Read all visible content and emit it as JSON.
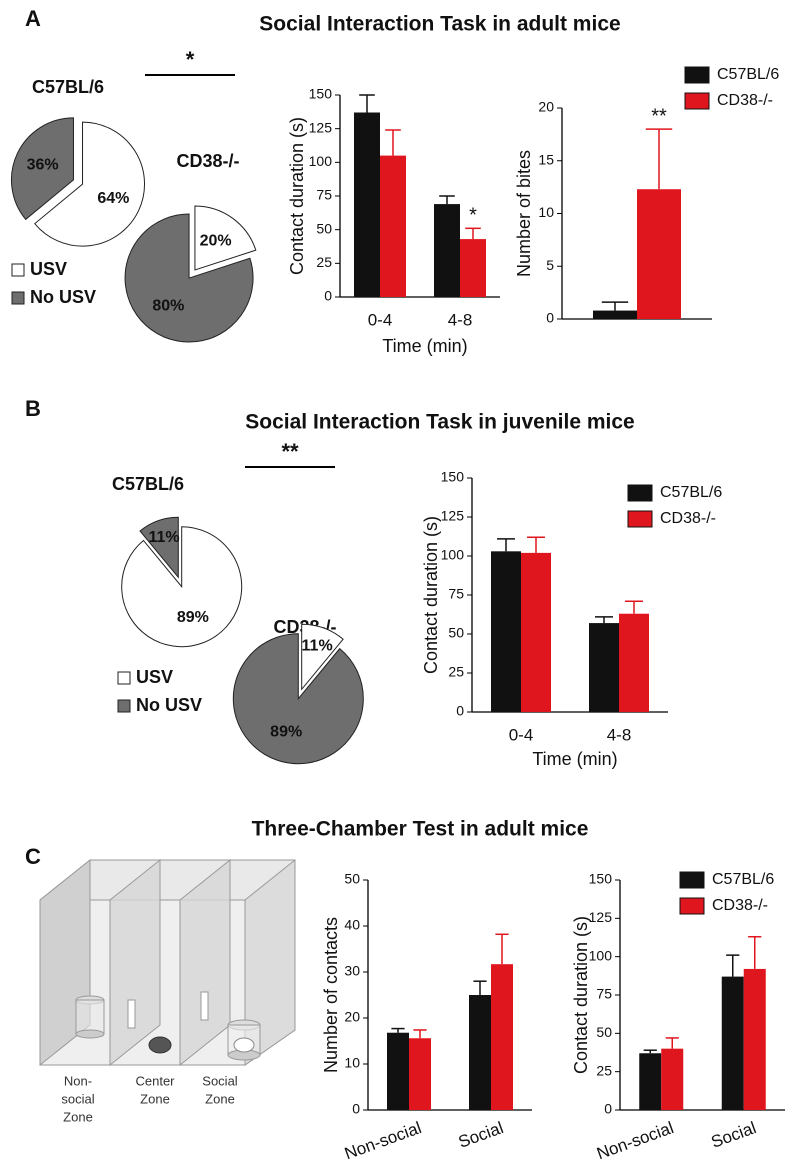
{
  "panels": [
    {
      "letter": "A",
      "title": "Social Interaction Task in adult mice"
    },
    {
      "letter": "B",
      "title": "Social Interaction Task in juvenile mice"
    },
    {
      "letter": "C",
      "title": "Three-Chamber Test in adult mice"
    }
  ],
  "diagram": {
    "zones": [
      [
        "Non-",
        "social",
        "Zone"
      ],
      [
        "Center",
        "Zone"
      ],
      [
        "Social",
        "Zone"
      ]
    ]
  },
  "chart_data": [
    {
      "type": "pie",
      "categories": [
        "USV",
        "No USV"
      ],
      "colors": [
        "#ffffff",
        "#6e6e6e"
      ],
      "series": [
        {
          "name": "C57BL/6",
          "values": [
            64,
            36
          ],
          "value_labels": [
            "64%",
            "36%"
          ]
        },
        {
          "name": "CD38-/-",
          "values": [
            20,
            80
          ],
          "value_labels": [
            "20%",
            "80%"
          ]
        }
      ],
      "annotation": "*"
    },
    {
      "type": "bar",
      "ylabel": "Contact duration (s)",
      "xlabel": "Time (min)",
      "categories": [
        "0-4",
        "4-8"
      ],
      "series": [
        {
          "color": "#111111",
          "values": [
            137,
            69
          ],
          "errors": [
            13,
            6
          ]
        },
        {
          "color": "#e0161e",
          "values": [
            105,
            43
          ],
          "errors": [
            19,
            8
          ],
          "annotations": [
            null,
            "*"
          ]
        }
      ],
      "ylim": [
        0,
        150
      ],
      "yticks": [
        0,
        25,
        50,
        75,
        100,
        125,
        150
      ]
    },
    {
      "type": "bar",
      "ylabel": "Number of bites",
      "categories": [
        null
      ],
      "series": [
        {
          "name": "C57BL/6",
          "color": "#111111",
          "values": [
            0.8
          ],
          "errors": [
            0.8
          ]
        },
        {
          "name": "CD38-/-",
          "color": "#e0161e",
          "values": [
            12.3
          ],
          "errors": [
            5.7
          ],
          "annotations": [
            "**"
          ]
        }
      ],
      "ylim": [
        0,
        20
      ],
      "yticks": [
        0,
        5,
        10,
        15,
        20
      ]
    },
    {
      "type": "pie",
      "categories": [
        "USV",
        "No USV"
      ],
      "colors": [
        "#ffffff",
        "#6e6e6e"
      ],
      "series": [
        {
          "name": "C57BL/6",
          "values": [
            89,
            11
          ],
          "value_labels": [
            "89%",
            "11%"
          ]
        },
        {
          "name": "CD38-/-",
          "values": [
            11,
            89
          ],
          "value_labels": [
            "11%",
            "89%"
          ]
        }
      ],
      "annotation": "**"
    },
    {
      "type": "bar",
      "ylabel": "Contact duration (s)",
      "xlabel": "Time (min)",
      "categories": [
        "0-4",
        "4-8"
      ],
      "series": [
        {
          "name": "C57BL/6",
          "color": "#111111",
          "values": [
            103,
            57
          ],
          "errors": [
            8,
            4
          ]
        },
        {
          "name": "CD38-/-",
          "color": "#e0161e",
          "values": [
            102,
            63
          ],
          "errors": [
            10,
            8
          ]
        }
      ],
      "ylim": [
        0,
        150
      ],
      "yticks": [
        0,
        25,
        50,
        75,
        100,
        125,
        150
      ]
    },
    {
      "type": "bar",
      "ylabel": "Number of contacts",
      "categories": [
        "Non-social",
        "Social"
      ],
      "series": [
        {
          "color": "#111111",
          "values": [
            16.8,
            25
          ],
          "errors": [
            0.9,
            3
          ]
        },
        {
          "color": "#e0161e",
          "values": [
            15.6,
            31.7
          ],
          "errors": [
            1.8,
            6.5
          ]
        }
      ],
      "ylim": [
        0,
        50
      ],
      "yticks": [
        0,
        10,
        20,
        30,
        40,
        50
      ]
    },
    {
      "type": "bar",
      "ylabel": "Contact duration (s)",
      "categories": [
        "Non-social",
        "Social"
      ],
      "series": [
        {
          "name": "C57BL/6",
          "color": "#111111",
          "values": [
            37,
            87
          ],
          "errors": [
            2,
            14
          ]
        },
        {
          "name": "CD38-/-",
          "color": "#e0161e",
          "values": [
            40,
            92
          ],
          "errors": [
            7,
            21
          ]
        }
      ],
      "ylim": [
        0,
        150
      ],
      "yticks": [
        0,
        25,
        50,
        75,
        100,
        125,
        150
      ]
    }
  ]
}
